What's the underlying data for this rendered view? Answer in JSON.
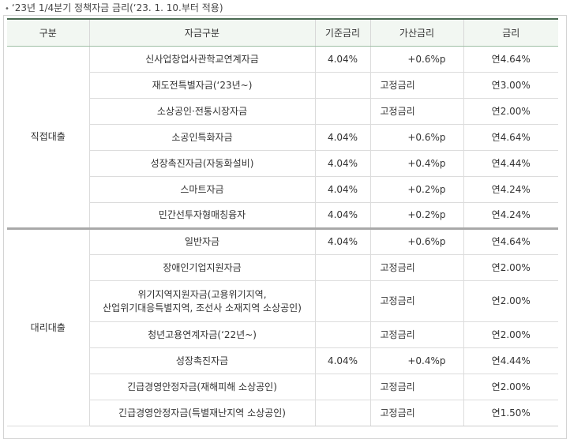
{
  "caption": {
    "bullet": "•",
    "text": "‘23년 1/4분기 정책자금 금리(‘23. 1. 10.부터 적용)"
  },
  "table": {
    "headers": [
      "구분",
      "자금구분",
      "기준금리",
      "가산금리",
      "금리"
    ],
    "groups": [
      {
        "label": "직접대출",
        "rows": [
          {
            "name": "신사업창업사관학교연계자금",
            "base": "4.04%",
            "add": "+0.6%p",
            "rate": "연4.64%",
            "fixed": false
          },
          {
            "name": "재도전특별자금(‘23년~)",
            "base": "",
            "add": "고정금리",
            "rate": "연3.00%",
            "fixed": true
          },
          {
            "name": "소상공인·전통시장자금",
            "base": "",
            "add": "고정금리",
            "rate": "연2.00%",
            "fixed": true
          },
          {
            "name": "소공인특화자금",
            "base": "4.04%",
            "add": "+0.6%p",
            "rate": "연4.64%",
            "fixed": false
          },
          {
            "name": "성장촉진자금(자동화설비)",
            "base": "4.04%",
            "add": "+0.4%p",
            "rate": "연4.44%",
            "fixed": false
          },
          {
            "name": "스마트자금",
            "base": "4.04%",
            "add": "+0.2%p",
            "rate": "연4.24%",
            "fixed": false
          },
          {
            "name": "민간선투자형매칭융자",
            "base": "4.04%",
            "add": "+0.2%p",
            "rate": "연4.24%",
            "fixed": false
          }
        ]
      },
      {
        "label": "대리대출",
        "rows": [
          {
            "name": "일반자금",
            "base": "4.04%",
            "add": "+0.6%p",
            "rate": "연4.64%",
            "fixed": false
          },
          {
            "name": "장애인기업지원자금",
            "base": "",
            "add": "고정금리",
            "rate": "연2.00%",
            "fixed": true
          },
          {
            "name_lines": [
              "위기지역지원자금(고용위기지역,",
              "산업위기대응특별지역, 조선사 소재지역 소상공인)"
            ],
            "base": "",
            "add": "고정금리",
            "rate": "연2.00%",
            "fixed": true
          },
          {
            "name": "청년고용연계자금(‘22년~)",
            "base": "",
            "add": "고정금리",
            "rate": "연2.00%",
            "fixed": true
          },
          {
            "name": "성장촉진자금",
            "base": "4.04%",
            "add": "+0.4%p",
            "rate": "연4.44%",
            "fixed": false
          },
          {
            "name": "긴급경영안정자금(재해피해 소상공인)",
            "base": "",
            "add": "고정금리",
            "rate": "연2.00%",
            "fixed": true
          },
          {
            "name": "긴급경영안정자금(특별재난지역 소상공인)",
            "base": "",
            "add": "고정금리",
            "rate": "연1.50%",
            "fixed": true
          }
        ]
      }
    ]
  }
}
